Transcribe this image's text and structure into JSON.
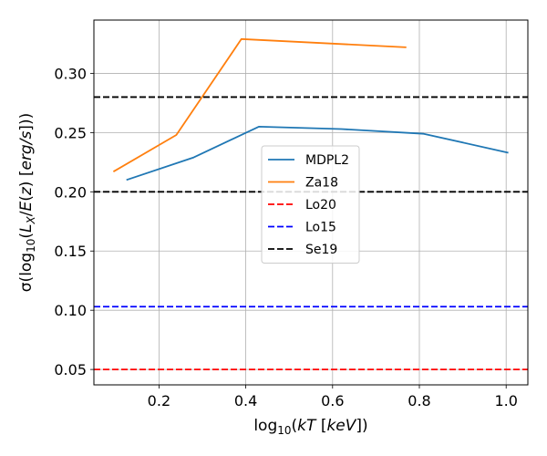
{
  "chart_data": {
    "type": "line",
    "xlabel": "log10(kT [keV])",
    "ylabel": "σ(log10(LX/E(z) [erg/s]))",
    "xlim": [
      0.05,
      1.05
    ],
    "ylim": [
      0.037,
      0.345
    ],
    "xticks": [
      0.2,
      0.4,
      0.6,
      0.8,
      1.0
    ],
    "xtick_labels": [
      "0.2",
      "0.4",
      "0.6",
      "0.8",
      "1.0"
    ],
    "yticks": [
      0.05,
      0.1,
      0.15,
      0.2,
      0.25,
      0.3
    ],
    "ytick_labels": [
      "0.05",
      "0.10",
      "0.15",
      "0.20",
      "0.25",
      "0.30"
    ],
    "grid": true,
    "legend_position": "center",
    "series": [
      {
        "name": "MDPL2",
        "style": "solid",
        "color": "#1f77b4",
        "x": [
          0.125,
          0.28,
          0.43,
          0.62,
          0.81,
          1.005
        ],
        "y": [
          0.21,
          0.229,
          0.255,
          0.253,
          0.249,
          0.233
        ]
      },
      {
        "name": "Za18",
        "style": "solid",
        "color": "#ff7f0e",
        "x": [
          0.095,
          0.24,
          0.39,
          0.77
        ],
        "y": [
          0.217,
          0.248,
          0.329,
          0.322
        ]
      },
      {
        "name": "Lo20",
        "style": "dashed",
        "color": "#ff0000",
        "hline": 0.05
      },
      {
        "name": "Lo15",
        "style": "dashed",
        "color": "#0000ff",
        "hline": 0.103
      },
      {
        "name": "Se19",
        "style": "dashed",
        "color": "#000000",
        "hline": [
          0.2,
          0.28
        ]
      }
    ]
  }
}
